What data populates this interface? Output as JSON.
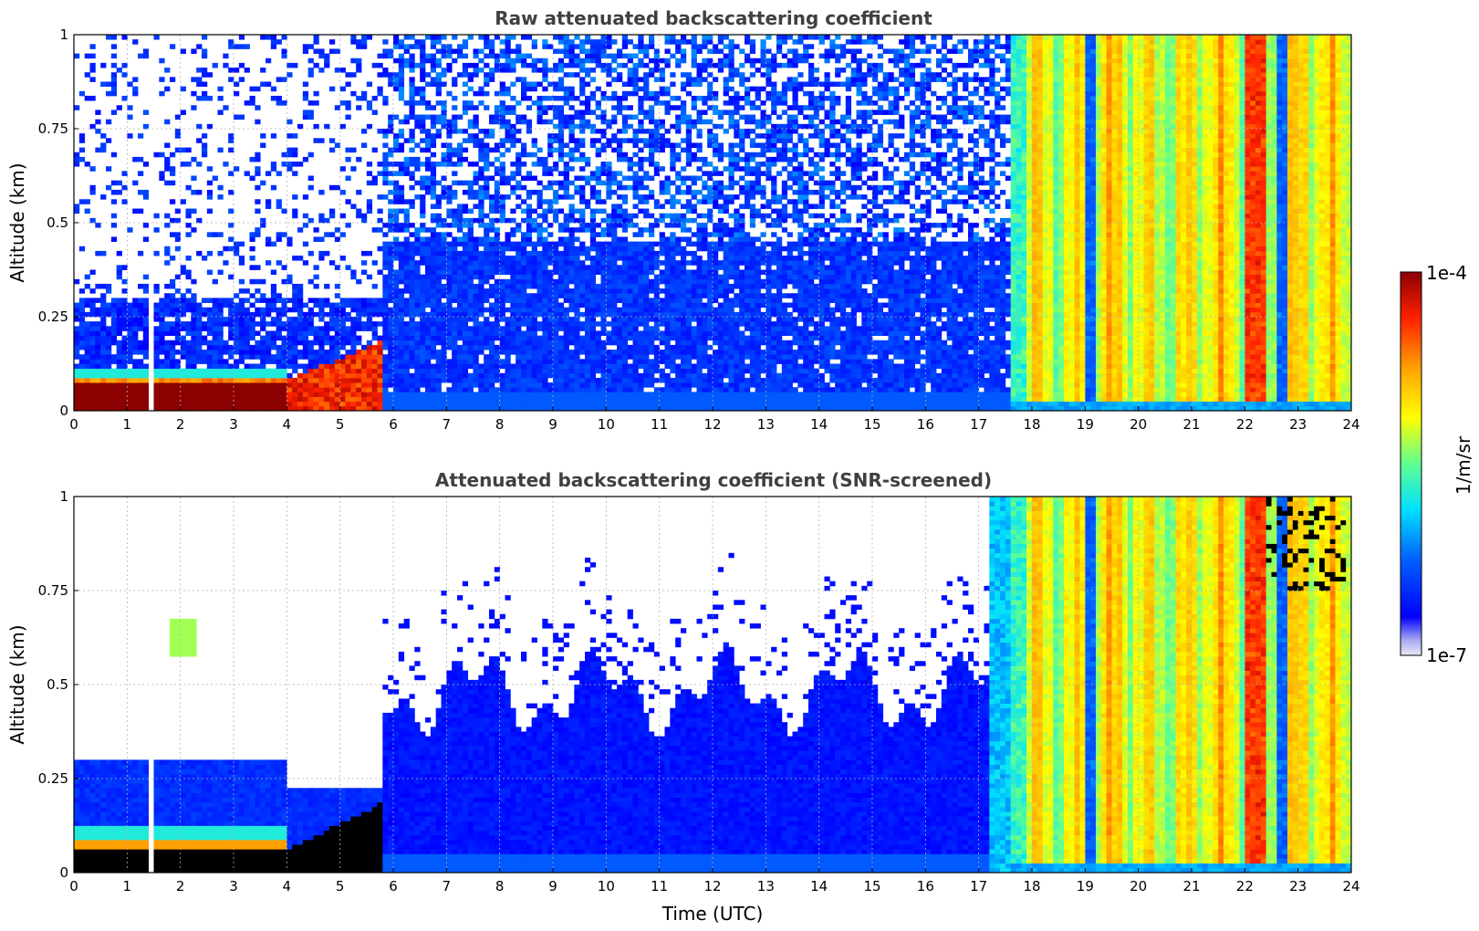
{
  "chart_data": [
    {
      "type": "heatmap",
      "title": "Raw attenuated backscattering coefficient",
      "xlabel": "",
      "ylabel": "Altitude (km)",
      "xlim": [
        0,
        24
      ],
      "ylim": [
        0,
        1
      ],
      "xticks": [
        "0",
        "1",
        "2",
        "3",
        "4",
        "5",
        "6",
        "7",
        "8",
        "9",
        "10",
        "11",
        "12",
        "13",
        "14",
        "15",
        "16",
        "17",
        "18",
        "19",
        "20",
        "21",
        "22",
        "23",
        "24"
      ],
      "yticks": [
        "0",
        "0.25",
        "0.5",
        "0.75",
        "1"
      ],
      "grid": true,
      "regions": [
        {
          "t_start": 0,
          "t_end": 4,
          "description": "surface layer",
          "alt_top": 0.08,
          "value_level": "max"
        },
        {
          "t_start": 1.45,
          "t_end": 1.55,
          "description": "data gap",
          "value_level": "none"
        },
        {
          "t_start": 4,
          "t_end": 5.8,
          "description": "rising surface layer",
          "alt_top": 0.2,
          "value_level": "high"
        },
        {
          "t_start": 6,
          "t_end": 17.6,
          "description": "noisy low signal",
          "value_level": "low"
        },
        {
          "t_start": 17.6,
          "t_end": 24,
          "description": "precipitation / strong signal",
          "value_level": "high"
        }
      ]
    },
    {
      "type": "heatmap",
      "title": "Attenuated backscattering coefficient (SNR-screened)",
      "xlabel": "Time (UTC)",
      "ylabel": "Altitude (km)",
      "xlim": [
        0,
        24
      ],
      "ylim": [
        0,
        1
      ],
      "xticks": [
        "0",
        "1",
        "2",
        "3",
        "4",
        "5",
        "6",
        "7",
        "8",
        "9",
        "10",
        "11",
        "12",
        "13",
        "14",
        "15",
        "16",
        "17",
        "18",
        "19",
        "20",
        "21",
        "22",
        "23",
        "24"
      ],
      "yticks": [
        "0",
        "0.25",
        "0.5",
        "0.75",
        "1"
      ],
      "grid": true,
      "regions": [
        {
          "t_start": 0,
          "t_end": 4,
          "description": "boundary layer",
          "alt_top": 0.3,
          "value_level": "low"
        },
        {
          "t_start": 0,
          "t_end": 5.8,
          "description": "saturated surface layer",
          "alt_top": 0.06,
          "value_level": "saturated"
        },
        {
          "t_start": 6,
          "t_end": 17.2,
          "description": "screened aerosol layer",
          "alt_top": 0.55,
          "value_level": "low"
        },
        {
          "t_start": 17.6,
          "t_end": 24,
          "description": "precipitation / strong signal",
          "value_level": "high"
        }
      ]
    }
  ],
  "colorbar": {
    "label": "1/m/sr",
    "max_label": "1e-4",
    "min_label": "1e-7",
    "scale": "log",
    "range": [
      1e-07,
      0.0001
    ],
    "colormap": "jet"
  }
}
